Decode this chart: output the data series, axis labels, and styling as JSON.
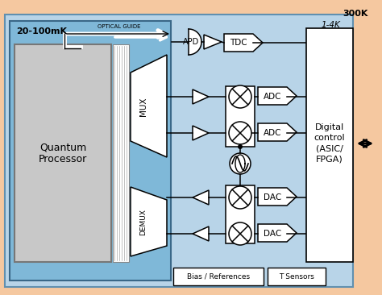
{
  "bg_outer": "#f5c8a0",
  "bg_inner": "#b8d4e8",
  "bg_mK": "#7fb8d8",
  "bg_qp": "#c8c8c8",
  "label_300K": "300K",
  "label_14K": "1-4K",
  "label_mK": "20-100mK",
  "label_optical": "OPTICAL GUIDE",
  "label_qp": "Quantum\nProcessor",
  "label_mux": "MUX",
  "label_demux": "DEMUX",
  "label_apd": "APD",
  "label_tdc": "TDC",
  "label_adc1": "ADC",
  "label_adc2": "ADC",
  "label_dac1": "DAC",
  "label_dac2": "DAC",
  "label_digital": "Digital\ncontrol\n(ASIC/\nFPGA)",
  "label_bias": "Bias / References",
  "label_tsens": "T Sensors"
}
